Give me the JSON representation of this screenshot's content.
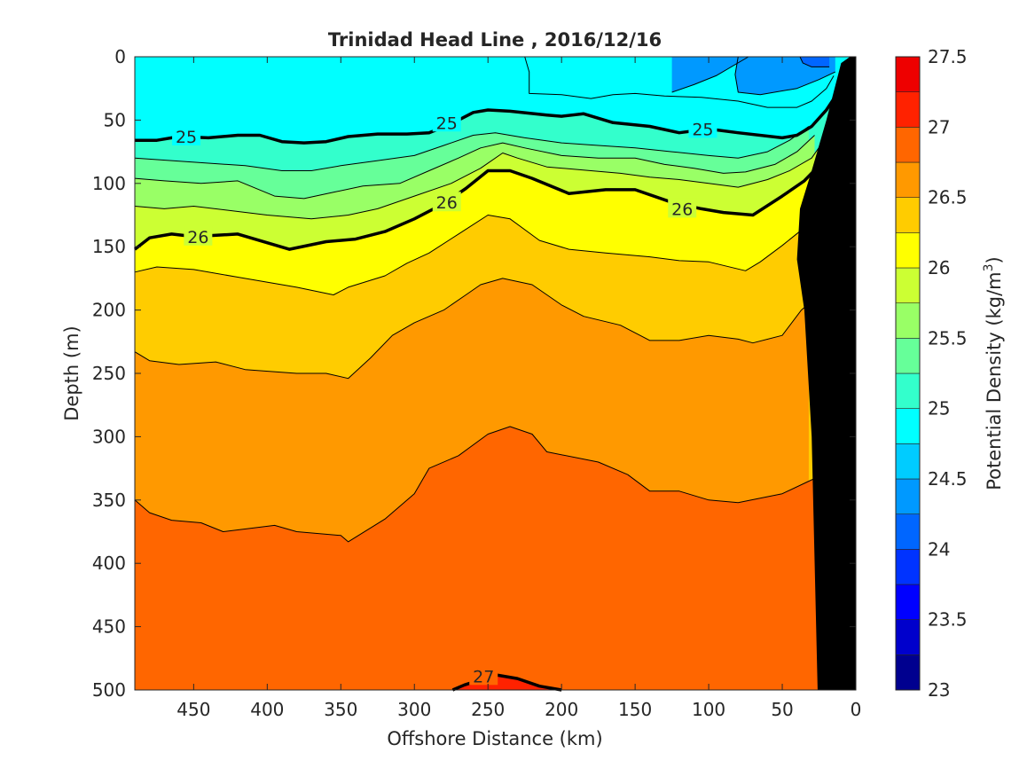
{
  "chart_data": {
    "type": "heatmap",
    "subtype": "filled-contour",
    "title": "Trinidad Head Line , 2016/12/16",
    "xlabel": "Offshore Distance (km)",
    "ylabel": "Depth (m)",
    "xlim": [
      490,
      0
    ],
    "ylim": [
      0,
      500
    ],
    "x_ticks": [
      450,
      400,
      350,
      300,
      250,
      200,
      150,
      100,
      50,
      0
    ],
    "y_ticks": [
      0,
      50,
      100,
      150,
      200,
      250,
      300,
      350,
      400,
      450,
      500
    ],
    "colorbar": {
      "label": "Potential Density (kg/m",
      "label_superscript": "3",
      "label_suffix": ")",
      "range": [
        23,
        27.5
      ],
      "levels": [
        23,
        23.25,
        23.5,
        23.75,
        24,
        24.25,
        24.5,
        24.75,
        25,
        25.25,
        25.5,
        25.75,
        26,
        26.25,
        26.5,
        26.75,
        27,
        27.25,
        27.5
      ],
      "tick_labels": [
        "23",
        "23.5",
        "24",
        "24.5",
        "25",
        "25.5",
        "26",
        "26.5",
        "27",
        "27.5"
      ],
      "colors": [
        "#00008f",
        "#0000cc",
        "#0000ff",
        "#0033ff",
        "#0066ff",
        "#0099ff",
        "#00ccff",
        "#00ffff",
        "#33ffcc",
        "#66ff99",
        "#99ff66",
        "#ccff33",
        "#ffff00",
        "#ffcc00",
        "#ff9900",
        "#ff6600",
        "#ff2200",
        "#ee0000",
        "#b30000"
      ]
    },
    "contour_labels": [
      {
        "x": 455,
        "y": 63,
        "text": "25"
      },
      {
        "x": 278,
        "y": 52,
        "text": "25"
      },
      {
        "x": 104,
        "y": 57,
        "text": "25"
      },
      {
        "x": 447,
        "y": 142,
        "text": "26"
      },
      {
        "x": 278,
        "y": 115,
        "text": "26"
      },
      {
        "x": 118,
        "y": 120,
        "text": "26"
      },
      {
        "x": 253,
        "y": 489,
        "text": "27"
      }
    ],
    "contours": [
      {
        "level": 27,
        "bold": true,
        "points": [
          [
            274,
            500
          ],
          [
            266,
            496
          ],
          [
            255,
            492
          ],
          [
            245,
            488
          ],
          [
            230,
            491
          ],
          [
            215,
            497
          ],
          [
            200,
            500
          ]
        ]
      },
      {
        "level": 26.75,
        "bold": false,
        "points": [
          [
            490,
            350
          ],
          [
            480,
            360
          ],
          [
            465,
            366
          ],
          [
            445,
            368
          ],
          [
            430,
            375
          ],
          [
            395,
            370
          ],
          [
            380,
            375
          ],
          [
            350,
            378
          ],
          [
            345,
            383
          ],
          [
            320,
            365
          ],
          [
            300,
            345
          ],
          [
            290,
            325
          ],
          [
            270,
            315
          ],
          [
            250,
            298
          ],
          [
            235,
            292
          ],
          [
            220,
            298
          ],
          [
            210,
            312
          ],
          [
            175,
            320
          ],
          [
            155,
            330
          ],
          [
            140,
            343
          ],
          [
            120,
            343
          ],
          [
            100,
            350
          ],
          [
            80,
            352
          ],
          [
            50,
            345
          ],
          [
            28,
            333
          ],
          [
            24,
            340
          ]
        ]
      },
      {
        "level": 26.5,
        "bold": false,
        "points": [
          [
            490,
            233
          ],
          [
            480,
            240
          ],
          [
            460,
            243
          ],
          [
            435,
            241
          ],
          [
            415,
            247
          ],
          [
            380,
            250
          ],
          [
            360,
            250
          ],
          [
            345,
            254
          ],
          [
            330,
            238
          ],
          [
            315,
            220
          ],
          [
            300,
            210
          ],
          [
            280,
            200
          ],
          [
            265,
            188
          ],
          [
            255,
            180
          ],
          [
            240,
            175
          ],
          [
            220,
            180
          ],
          [
            200,
            196
          ],
          [
            185,
            205
          ],
          [
            160,
            212
          ],
          [
            140,
            224
          ],
          [
            120,
            224
          ],
          [
            100,
            220
          ],
          [
            80,
            223
          ],
          [
            70,
            226
          ],
          [
            50,
            220
          ],
          [
            37,
            200
          ],
          [
            32,
            195
          ]
        ]
      },
      {
        "level": 26.25,
        "bold": false,
        "points": [
          [
            490,
            170
          ],
          [
            475,
            166
          ],
          [
            450,
            168
          ],
          [
            420,
            174
          ],
          [
            380,
            182
          ],
          [
            355,
            188
          ],
          [
            345,
            182
          ],
          [
            320,
            173
          ],
          [
            305,
            163
          ],
          [
            290,
            155
          ],
          [
            270,
            140
          ],
          [
            250,
            125
          ],
          [
            235,
            128
          ],
          [
            215,
            145
          ],
          [
            195,
            152
          ],
          [
            170,
            155
          ],
          [
            140,
            158
          ],
          [
            120,
            161
          ],
          [
            100,
            162
          ],
          [
            75,
            169
          ],
          [
            65,
            162
          ],
          [
            50,
            149
          ],
          [
            35,
            135
          ],
          [
            20,
            120
          ]
        ]
      },
      {
        "level": 26,
        "bold": true,
        "points": [
          [
            490,
            152
          ],
          [
            480,
            143
          ],
          [
            465,
            140
          ],
          [
            450,
            142
          ],
          [
            420,
            140
          ],
          [
            385,
            152
          ],
          [
            360,
            146
          ],
          [
            340,
            144
          ],
          [
            320,
            138
          ],
          [
            300,
            128
          ],
          [
            280,
            116
          ],
          [
            265,
            104
          ],
          [
            250,
            90
          ],
          [
            235,
            90
          ],
          [
            220,
            96
          ],
          [
            195,
            108
          ],
          [
            170,
            105
          ],
          [
            150,
            105
          ],
          [
            125,
            115
          ],
          [
            105,
            120
          ],
          [
            90,
            123
          ],
          [
            70,
            125
          ],
          [
            50,
            110
          ],
          [
            35,
            98
          ],
          [
            20,
            80
          ],
          [
            12,
            45
          ],
          [
            8,
            20
          ]
        ]
      },
      {
        "level": 25.75,
        "bold": false,
        "points": [
          [
            490,
            118
          ],
          [
            470,
            120
          ],
          [
            450,
            118
          ],
          [
            400,
            125
          ],
          [
            370,
            128
          ],
          [
            345,
            125
          ],
          [
            325,
            120
          ],
          [
            300,
            110
          ],
          [
            275,
            100
          ],
          [
            255,
            88
          ],
          [
            240,
            76
          ],
          [
            230,
            80
          ],
          [
            210,
            87
          ],
          [
            180,
            90
          ],
          [
            160,
            92
          ],
          [
            140,
            95
          ],
          [
            120,
            97
          ],
          [
            100,
            100
          ],
          [
            80,
            103
          ],
          [
            60,
            97
          ],
          [
            45,
            90
          ],
          [
            30,
            80
          ],
          [
            18,
            60
          ]
        ]
      },
      {
        "level": 25.5,
        "bold": false,
        "points": [
          [
            490,
            96
          ],
          [
            470,
            98
          ],
          [
            445,
            100
          ],
          [
            420,
            98
          ],
          [
            395,
            110
          ],
          [
            375,
            112
          ],
          [
            355,
            107
          ],
          [
            335,
            102
          ],
          [
            310,
            100
          ],
          [
            290,
            90
          ],
          [
            270,
            80
          ],
          [
            255,
            72
          ],
          [
            240,
            68
          ],
          [
            225,
            72
          ],
          [
            200,
            78
          ],
          [
            175,
            80
          ],
          [
            150,
            80
          ],
          [
            130,
            85
          ],
          [
            110,
            88
          ],
          [
            90,
            92
          ],
          [
            75,
            91
          ],
          [
            55,
            85
          ],
          [
            40,
            75
          ],
          [
            28,
            62
          ]
        ]
      },
      {
        "level": 25.25,
        "bold": false,
        "points": [
          [
            490,
            80
          ],
          [
            465,
            82
          ],
          [
            440,
            84
          ],
          [
            415,
            86
          ],
          [
            390,
            90
          ],
          [
            370,
            90
          ],
          [
            350,
            86
          ],
          [
            325,
            82
          ],
          [
            300,
            78
          ],
          [
            280,
            70
          ],
          [
            260,
            62
          ],
          [
            245,
            60
          ],
          [
            225,
            64
          ],
          [
            200,
            68
          ],
          [
            175,
            70
          ],
          [
            150,
            72
          ],
          [
            125,
            75
          ],
          [
            100,
            78
          ],
          [
            80,
            80
          ],
          [
            60,
            75
          ],
          [
            45,
            66
          ],
          [
            32,
            55
          ]
        ]
      },
      {
        "level": 25,
        "bold": true,
        "points": [
          [
            490,
            66
          ],
          [
            475,
            66
          ],
          [
            460,
            63
          ],
          [
            440,
            64
          ],
          [
            420,
            62
          ],
          [
            405,
            62
          ],
          [
            390,
            67
          ],
          [
            375,
            68
          ],
          [
            360,
            67
          ],
          [
            345,
            63
          ],
          [
            325,
            61
          ],
          [
            305,
            61
          ],
          [
            290,
            60
          ],
          [
            275,
            53
          ],
          [
            260,
            44
          ],
          [
            250,
            42
          ],
          [
            235,
            43
          ],
          [
            210,
            46
          ],
          [
            200,
            47
          ],
          [
            185,
            45
          ],
          [
            165,
            52
          ],
          [
            140,
            55
          ],
          [
            120,
            60
          ],
          [
            100,
            57
          ],
          [
            80,
            60
          ],
          [
            50,
            64
          ],
          [
            40,
            62
          ],
          [
            30,
            55
          ],
          [
            20,
            42
          ],
          [
            12,
            28
          ]
        ]
      },
      {
        "level": 24.75,
        "bold": false,
        "points": [
          [
            225,
            0
          ],
          [
            222,
            12
          ],
          [
            222,
            29
          ],
          [
            200,
            30
          ],
          [
            180,
            33
          ],
          [
            165,
            30
          ],
          [
            150,
            29
          ],
          [
            130,
            31
          ],
          [
            105,
            32
          ],
          [
            80,
            35
          ],
          [
            60,
            40
          ],
          [
            40,
            40
          ],
          [
            30,
            35
          ],
          [
            20,
            25
          ],
          [
            15,
            15
          ]
        ]
      },
      {
        "level": 24.5,
        "bold": false,
        "points": [
          [
            125,
            28
          ],
          [
            110,
            22
          ],
          [
            95,
            15
          ],
          [
            73,
            0
          ]
        ]
      },
      {
        "level": 24.5,
        "bold": false,
        "points": [
          [
            80,
            0
          ],
          [
            82,
            14
          ],
          [
            80,
            28
          ],
          [
            65,
            30
          ],
          [
            40,
            25
          ],
          [
            25,
            18
          ],
          [
            14,
            12
          ]
        ]
      },
      {
        "level": 24.25,
        "bold": false,
        "points": [
          [
            38,
            0
          ],
          [
            36,
            5
          ],
          [
            30,
            8
          ],
          [
            18,
            8
          ]
        ]
      }
    ],
    "land": {
      "label": "",
      "points": [
        [
          0,
          0
        ],
        [
          0,
          500
        ],
        [
          26,
          500
        ],
        [
          30,
          300
        ],
        [
          35,
          200
        ],
        [
          40,
          160
        ],
        [
          38,
          120
        ],
        [
          30,
          90
        ],
        [
          20,
          50
        ],
        [
          10,
          5
        ],
        [
          4,
          0
        ]
      ]
    }
  }
}
